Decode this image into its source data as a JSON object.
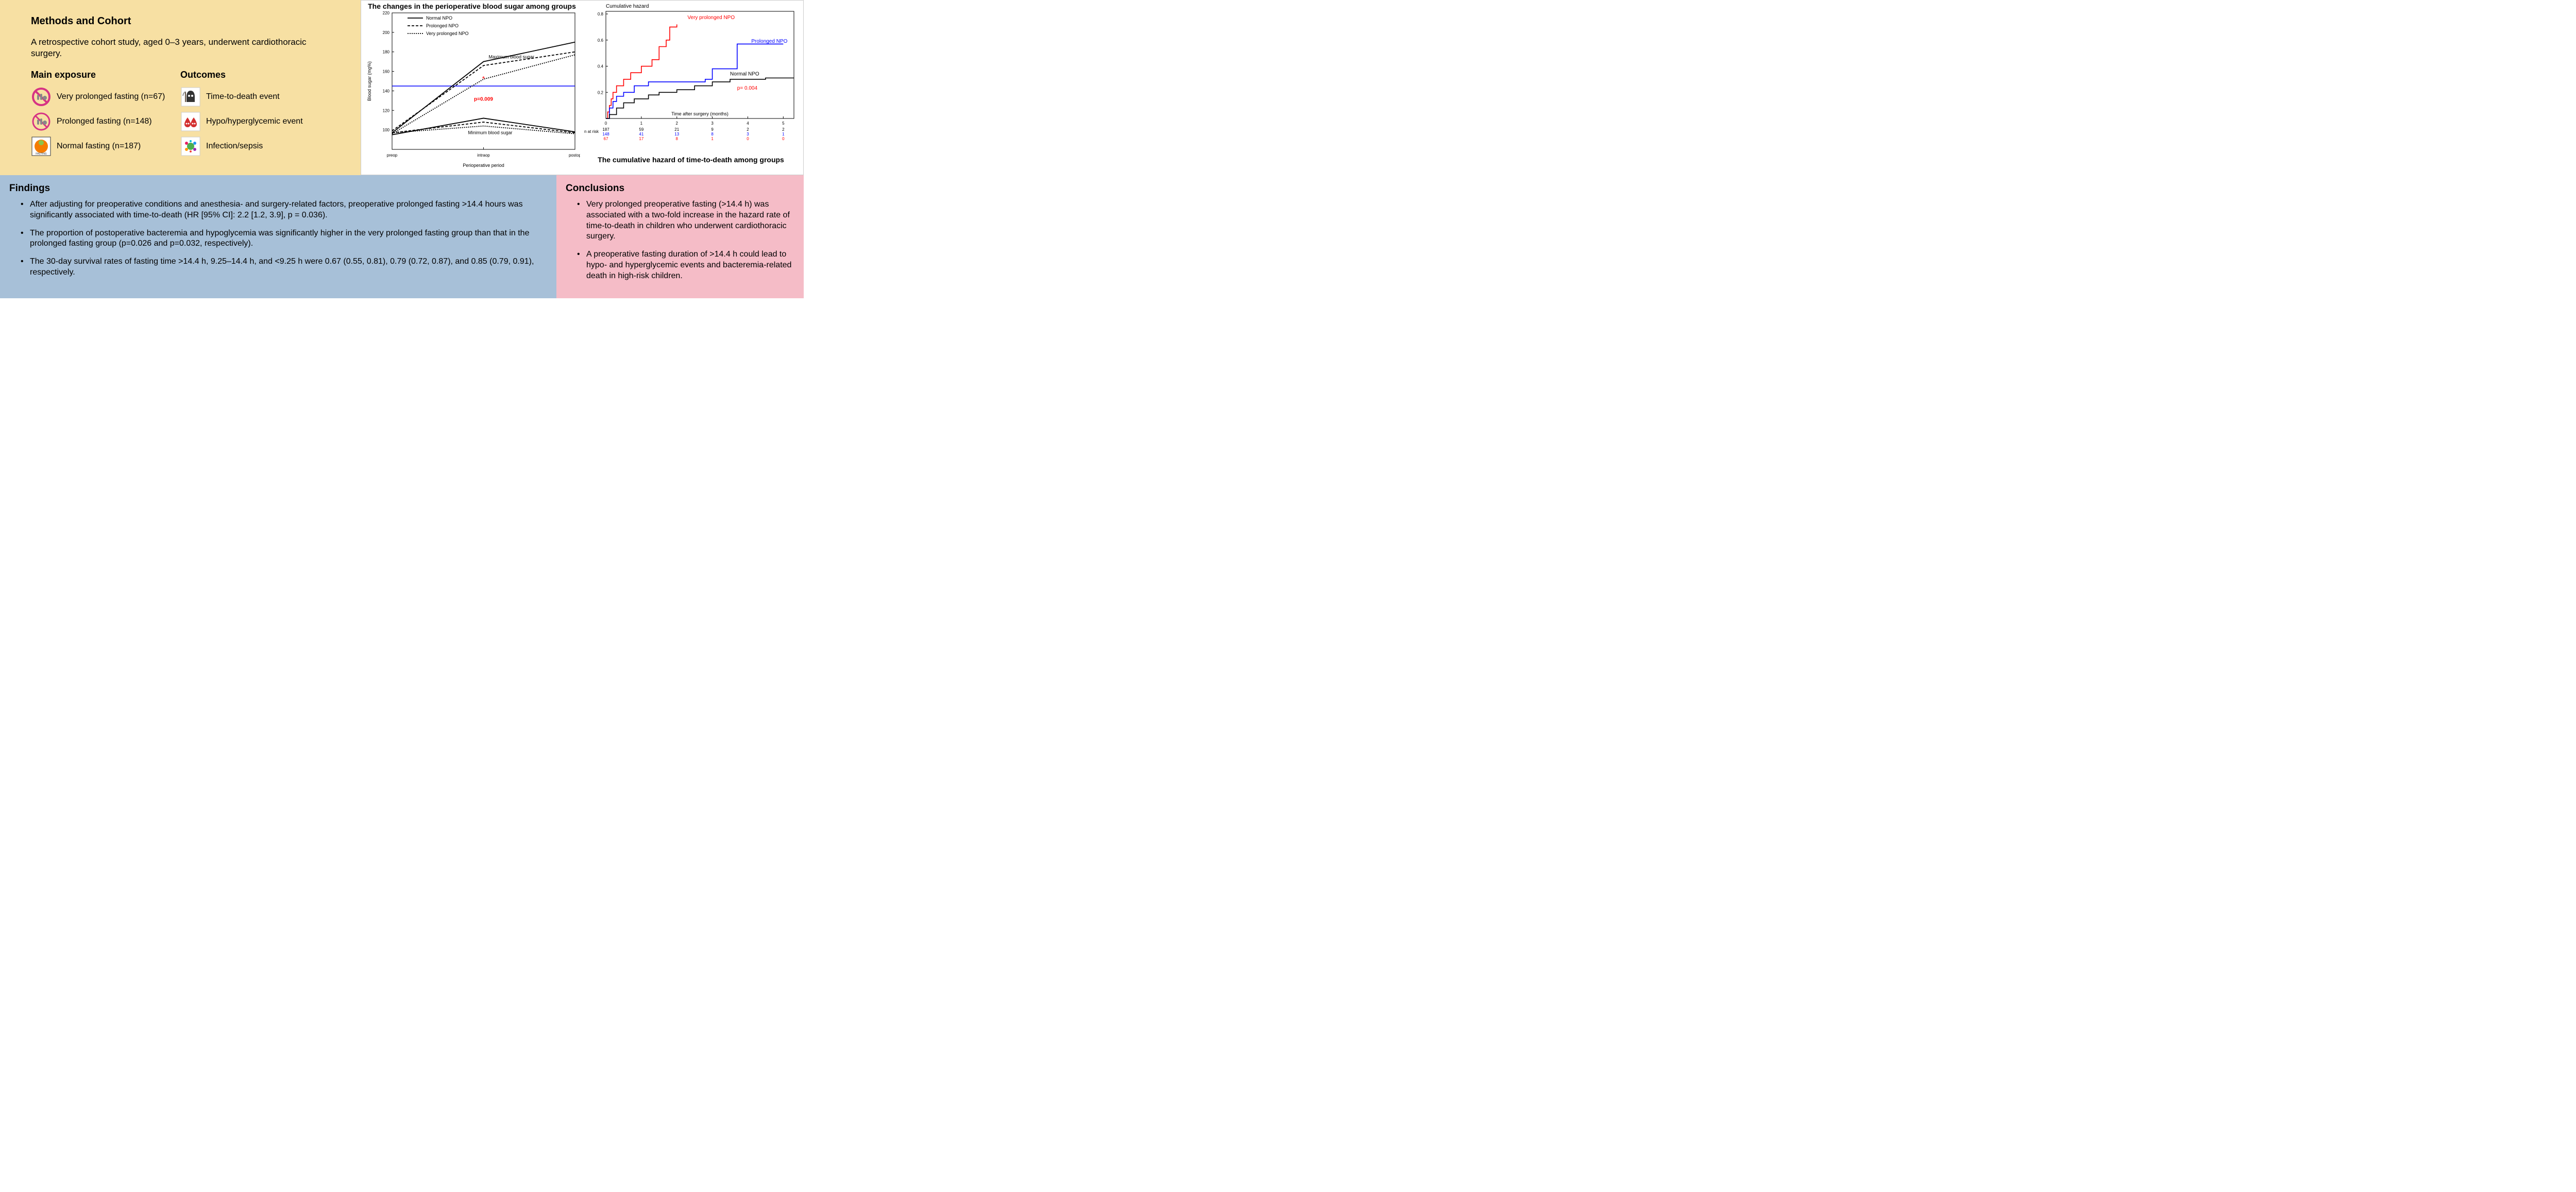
{
  "methods": {
    "title": "Methods and Cohort",
    "desc": "A retrospective cohort study, aged 0–3 years, underwent cardiothoracic surgery.",
    "exposure_header": "Main exposure",
    "exposure_items": [
      {
        "label": "Very prolonged fasting (n=67)",
        "icon": "no-food-strong",
        "color": "#d63384"
      },
      {
        "label": "Prolonged fasting (n=148)",
        "icon": "no-food",
        "color": "#d63384"
      },
      {
        "label": "Normal fasting (n=187)",
        "icon": "plate",
        "color": "#f57c00"
      }
    ],
    "outcomes_header": "Outcomes",
    "outcome_items": [
      {
        "label": "Time-to-death event",
        "icon": "reaper"
      },
      {
        "label": "Hypo/hyperglycemic event",
        "icon": "blood"
      },
      {
        "label": "Infection/sepsis",
        "icon": "virus"
      }
    ]
  },
  "chart1": {
    "title": "The changes in the perioperative blood sugar among groups",
    "type": "line",
    "xlabel": "Perioperative period",
    "ylabel": "Blood sugar (mg%)",
    "xcats": [
      "preop",
      "intraop",
      "postop"
    ],
    "ylim": [
      80,
      220
    ],
    "yticks": [
      100,
      120,
      140,
      160,
      180,
      200,
      220
    ],
    "ref_line_y": 145,
    "ref_line_color": "#0000ff",
    "legend": [
      "Normal NPO",
      "Prolonged NPO",
      "Very prolonged NPO"
    ],
    "series_styles": [
      {
        "dash": "none",
        "color": "#000000"
      },
      {
        "dash": "5,3",
        "color": "#000000"
      },
      {
        "dash": "2,2",
        "color": "#000000"
      }
    ],
    "upper_label": "Maximum blood sugar",
    "lower_label": "Minimum blood sugar",
    "upper": [
      [
        97,
        170,
        190
      ],
      [
        99,
        166,
        180
      ],
      [
        96,
        152,
        177
      ]
    ],
    "lower": [
      [
        95,
        112,
        98
      ],
      [
        97,
        108,
        97
      ],
      [
        97,
        104,
        96
      ]
    ],
    "star_x": 1,
    "star_y": 152,
    "star_color": "#ff0000",
    "p_text": "p=0.009",
    "p_x": 1,
    "p_y": 130,
    "p_color": "#ff0000",
    "label_fontsize": 9,
    "tick_fontsize": 8,
    "title_fontsize": 14,
    "bg": "#ffffff"
  },
  "chart2": {
    "title": "The cumulative hazard of time-to-death among groups",
    "ylabel": "Cumulative hazard",
    "xlabel": "Time after surgery (months)",
    "xlim": [
      0,
      5.3
    ],
    "xticks": [
      0,
      1,
      2,
      3,
      4,
      5
    ],
    "ylim": [
      0,
      0.82
    ],
    "yticks": [
      0.2,
      0.4,
      0.6,
      0.8
    ],
    "p_text": "p= 0.004",
    "p_x": 3.7,
    "p_y": 0.22,
    "p_color": "#ff0000",
    "series": [
      {
        "name": "Very prolonged NPO",
        "color": "#ff0000",
        "label_x": 2.3,
        "label_y": 0.76,
        "pts": [
          [
            0,
            0
          ],
          [
            0.05,
            0.05
          ],
          [
            0.1,
            0.1
          ],
          [
            0.15,
            0.15
          ],
          [
            0.2,
            0.2
          ],
          [
            0.3,
            0.25
          ],
          [
            0.5,
            0.3
          ],
          [
            0.7,
            0.35
          ],
          [
            1.0,
            0.4
          ],
          [
            1.3,
            0.45
          ],
          [
            1.5,
            0.55
          ],
          [
            1.7,
            0.6
          ],
          [
            1.8,
            0.7
          ],
          [
            2.0,
            0.72
          ]
        ]
      },
      {
        "name": "Prolonged NPO",
        "color": "#0000ff",
        "label_x": 4.1,
        "label_y": 0.58,
        "pts": [
          [
            0,
            0
          ],
          [
            0.1,
            0.08
          ],
          [
            0.2,
            0.13
          ],
          [
            0.3,
            0.17
          ],
          [
            0.5,
            0.2
          ],
          [
            0.8,
            0.25
          ],
          [
            1.2,
            0.28
          ],
          [
            2.0,
            0.28
          ],
          [
            2.8,
            0.3
          ],
          [
            3.0,
            0.38
          ],
          [
            3.5,
            0.38
          ],
          [
            3.7,
            0.57
          ],
          [
            5.0,
            0.57
          ]
        ]
      },
      {
        "name": "Normal NPO",
        "color": "#000000",
        "label_x": 3.5,
        "label_y": 0.33,
        "pts": [
          [
            0,
            0
          ],
          [
            0.1,
            0.03
          ],
          [
            0.3,
            0.08
          ],
          [
            0.5,
            0.12
          ],
          [
            0.8,
            0.15
          ],
          [
            1.2,
            0.18
          ],
          [
            1.5,
            0.2
          ],
          [
            2.0,
            0.22
          ],
          [
            2.5,
            0.25
          ],
          [
            3.0,
            0.28
          ],
          [
            3.5,
            0.3
          ],
          [
            4.5,
            0.31
          ],
          [
            5.3,
            0.31
          ]
        ]
      }
    ],
    "risk_table": {
      "label": "n at risk",
      "rows": [
        {
          "color": "#000000",
          "vals": [
            187,
            59,
            21,
            9,
            2,
            2
          ]
        },
        {
          "color": "#0000ff",
          "vals": [
            148,
            41,
            13,
            8,
            3,
            1
          ]
        },
        {
          "color": "#ff0000",
          "vals": [
            67,
            17,
            8,
            1,
            0,
            0
          ]
        }
      ]
    },
    "label_fontsize": 9,
    "tick_fontsize": 8
  },
  "findings": {
    "title": "Findings",
    "bullets": [
      "After adjusting for preoperative conditions and anesthesia- and surgery-related factors, preoperative prolonged fasting >14.4 hours was significantly associated with time-to-death (HR [95% CI]: 2.2 [1.2, 3.9], p = 0.036).",
      "The proportion of postoperative bacteremia and hypoglycemia was significantly higher in the very prolonged fasting group than that in the prolonged fasting group (p=0.026 and p=0.032, respectively).",
      "The 30-day survival rates of fasting time >14.4 h, 9.25–14.4 h, and <9.25 h were 0.67 (0.55, 0.81), 0.79 (0.72, 0.87), and 0.85 (0.79, 0.91), respectively."
    ]
  },
  "conclusions": {
    "title": "Conclusions",
    "bullets": [
      "Very prolonged preoperative fasting (>14.4 h) was associated with a two-fold increase in the hazard rate of time-to-death in children who underwent cardiothoracic surgery.",
      "A preoperative fasting duration of >14.4 h could lead to hypo- and hyperglycemic events and bacteremia-related death in high-risk children."
    ]
  }
}
